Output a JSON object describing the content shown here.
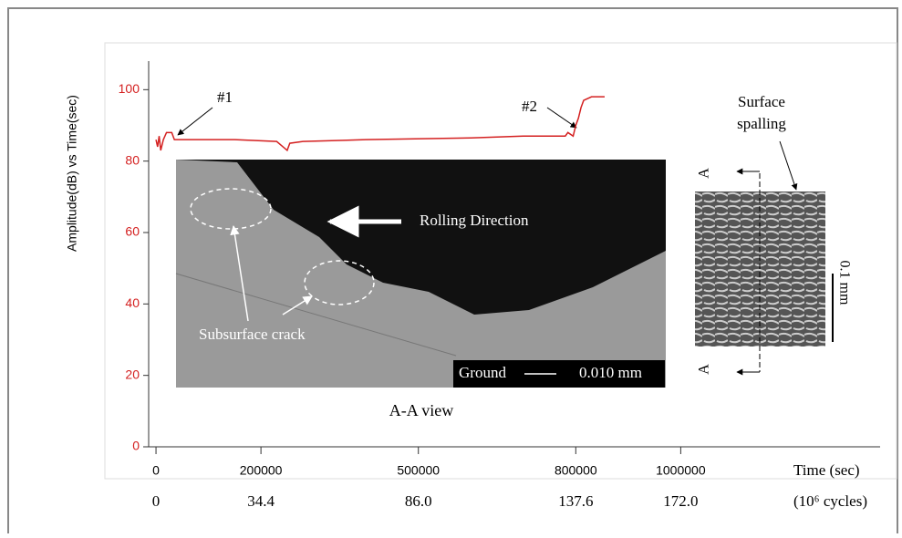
{
  "chart_data": {
    "type": "line",
    "y_label": "Amplitude(dB) vs Time(sec)",
    "x_label": "Time (sec)",
    "x2_label": "(10⁶ cycles)",
    "xlim": [
      -14000,
      1380000
    ],
    "xticks": [
      0,
      200000,
      500000,
      800000,
      1000000
    ],
    "x2lim": [
      -2.408,
      237.36
    ],
    "x2ticks": [
      0,
      34.4,
      {
        "value": 86,
        "label": "86.0"
      },
      137.6,
      {
        "value": 172,
        "label": "172.0"
      }
    ],
    "ylim": [
      0,
      108
    ],
    "yticks": [
      0,
      20,
      40,
      60,
      80,
      100
    ],
    "series": [
      {
        "color": "#d42020",
        "x": [
          0,
          3000,
          6000,
          9000,
          14000,
          20000,
          30000,
          35000,
          150000,
          230000,
          250000,
          255000,
          280000,
          400000,
          600000,
          700000,
          780000,
          785000,
          795000,
          800000,
          805000,
          810000,
          815000,
          830000,
          855000
        ],
        "values": [
          86,
          84,
          87,
          83,
          86,
          88,
          88,
          86,
          86,
          85.5,
          83,
          85,
          85.5,
          86,
          86.5,
          87,
          87,
          88,
          87,
          90,
          92,
          95,
          97,
          98,
          98
        ]
      }
    ],
    "annotations": [
      "#1",
      "#2",
      "Rolling Direction",
      "Subsurface crack",
      "Ground",
      "0.010 mm",
      "A-A view",
      "Surface spalling",
      "A",
      "A",
      "0.1 mm"
    ]
  }
}
